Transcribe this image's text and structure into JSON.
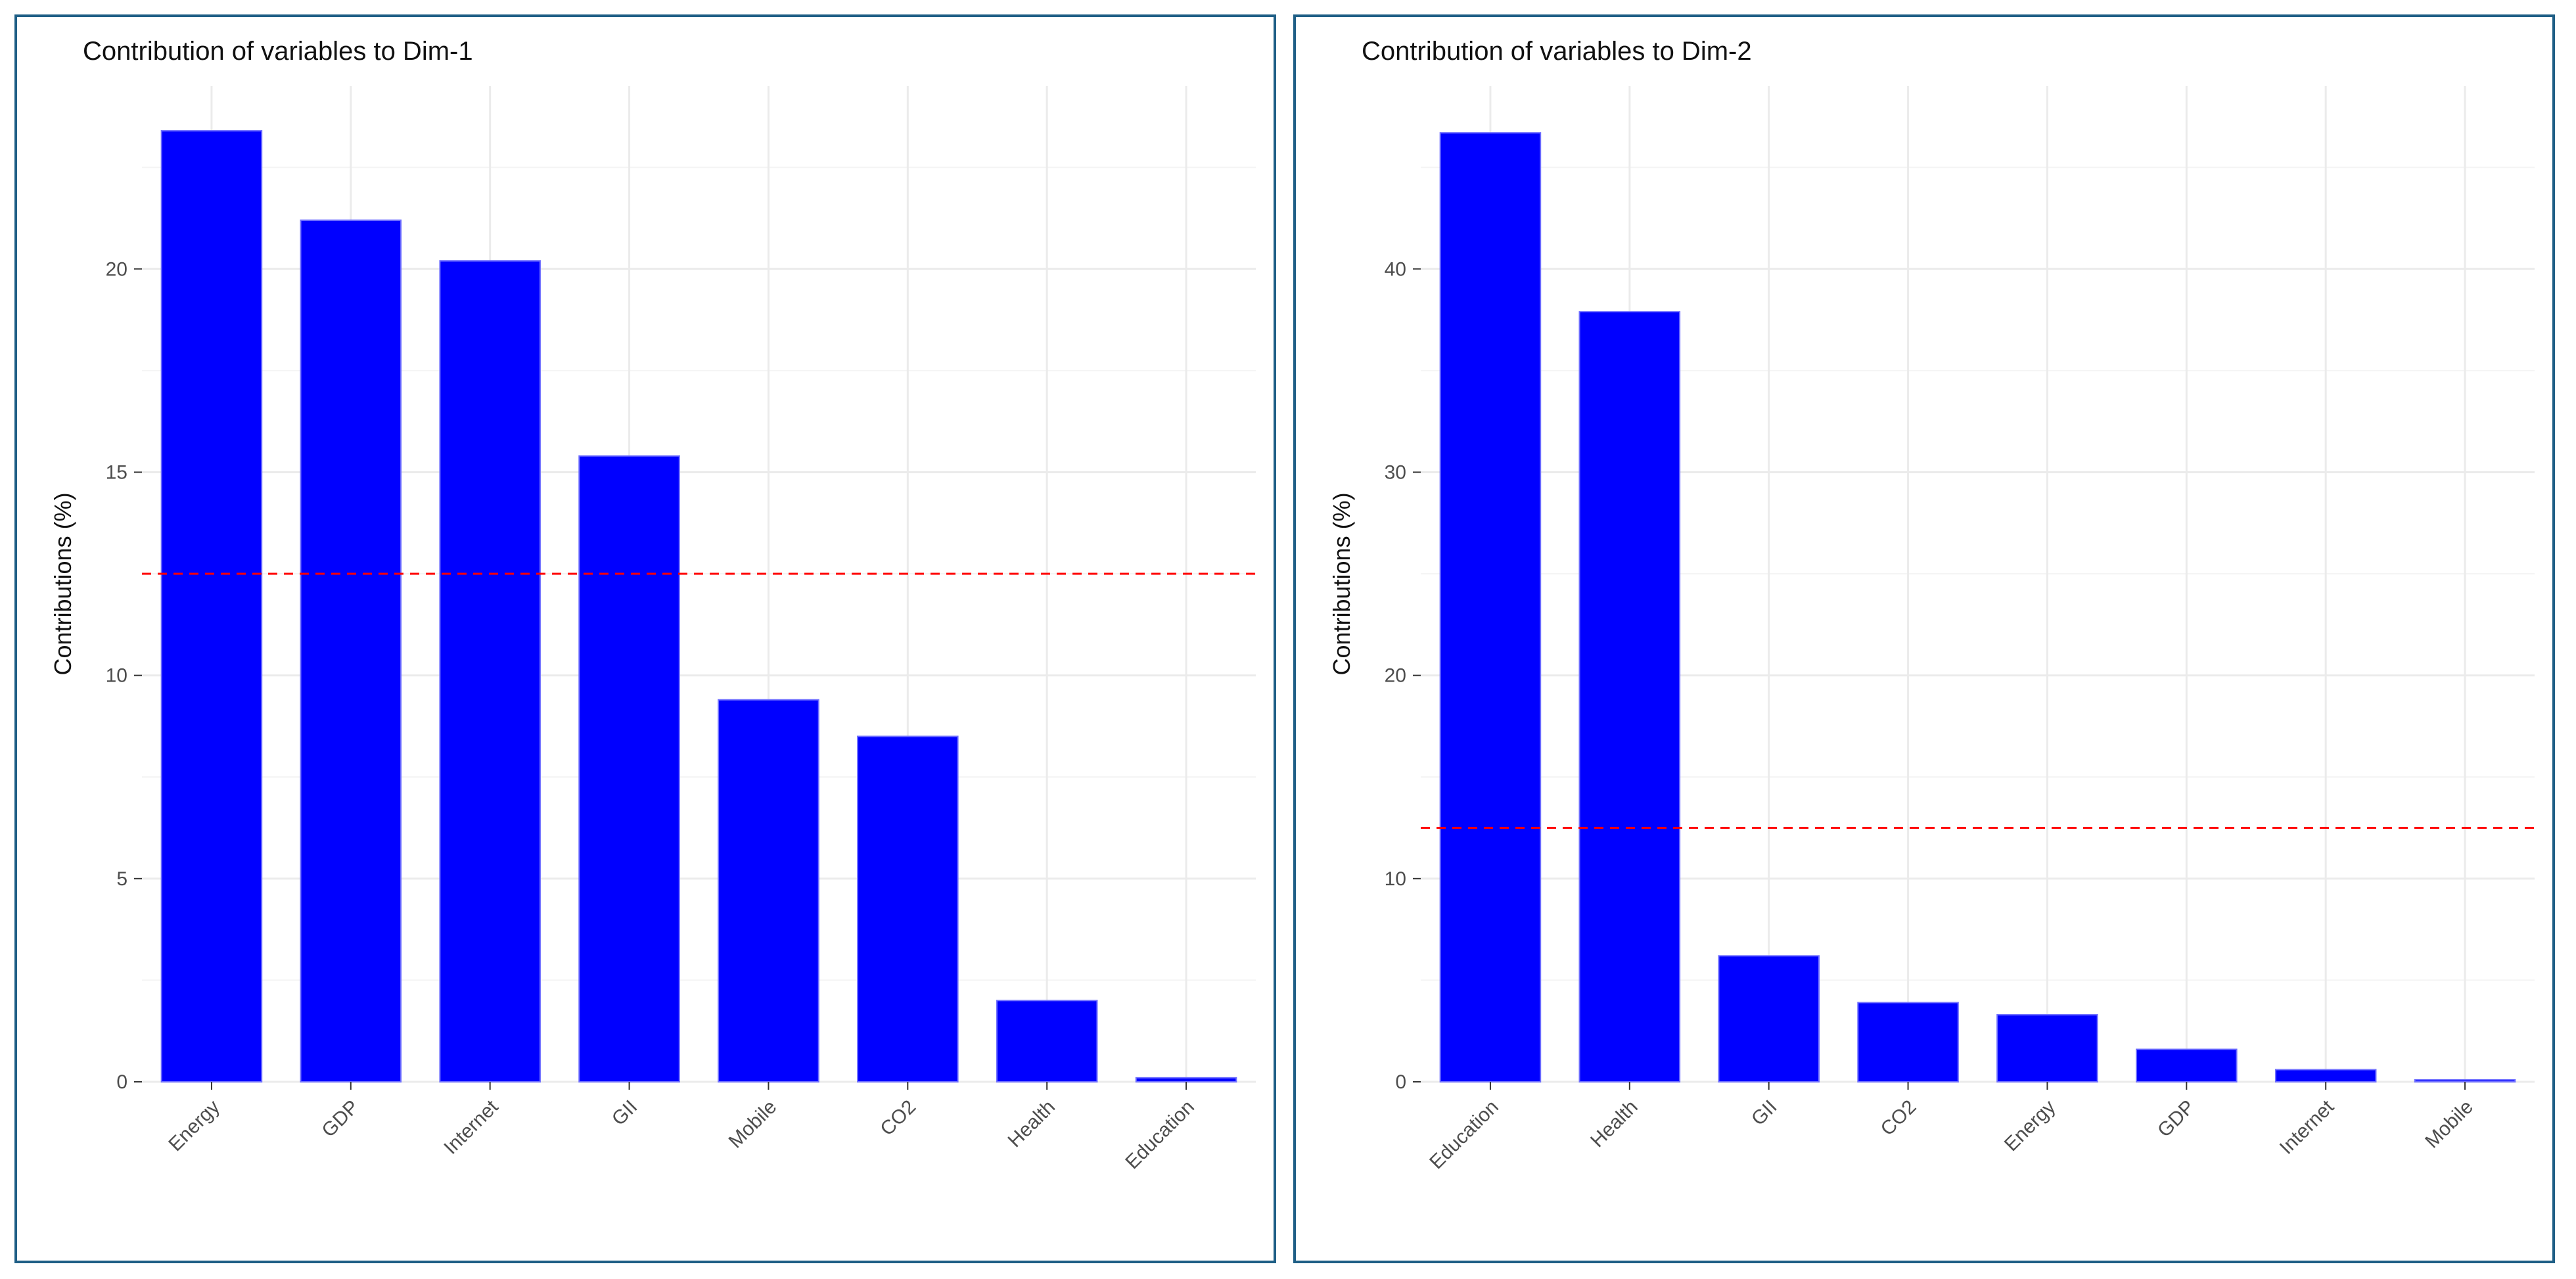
{
  "chart_data": [
    {
      "type": "bar",
      "title": "Contribution of variables to Dim-1",
      "xlabel": "",
      "ylabel": "Contributions (%)",
      "categories": [
        "Energy",
        "GDP",
        "Internet",
        "GII",
        "Mobile",
        "CO2",
        "Health",
        "Education"
      ],
      "values": [
        23.4,
        21.2,
        20.2,
        15.4,
        9.4,
        8.5,
        2.0,
        0.1
      ],
      "yticks": [
        0,
        5,
        10,
        15,
        20
      ],
      "ylim": [
        0,
        24.5
      ],
      "reference_line": 12.5,
      "bar_color": "#0000ff",
      "reference_line_color": "#ff0000"
    },
    {
      "type": "bar",
      "title": "Contribution of variables to Dim-2",
      "xlabel": "",
      "ylabel": "Contributions (%)",
      "categories": [
        "Education",
        "Health",
        "GII",
        "CO2",
        "Energy",
        "GDP",
        "Internet",
        "Mobile"
      ],
      "values": [
        46.7,
        37.9,
        6.2,
        3.9,
        3.3,
        1.6,
        0.6,
        0.1
      ],
      "yticks": [
        0,
        10,
        20,
        30,
        40
      ],
      "ylim": [
        0,
        49
      ],
      "reference_line": 12.5,
      "bar_color": "#0000ff",
      "reference_line_color": "#ff0000"
    }
  ]
}
